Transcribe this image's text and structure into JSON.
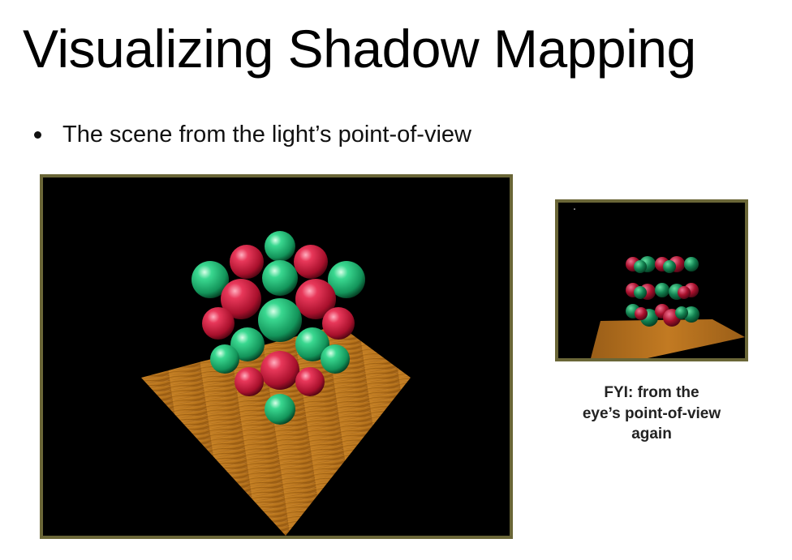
{
  "slide": {
    "title": "Visualizing Shadow Mapping",
    "bullet": "The scene from the light’s point-of-view",
    "caption_lines": [
      "FYI: from the",
      "eye’s point-of-view",
      "again"
    ]
  },
  "figures": {
    "main_image": "scene-from-light-view",
    "small_image": "scene-from-eye-view"
  },
  "colors": {
    "frame_border": "#6a6637",
    "background": "#000000",
    "sphere_red": "#c8203c",
    "sphere_green": "#1fb877",
    "floor_wood": "#b8741c"
  }
}
